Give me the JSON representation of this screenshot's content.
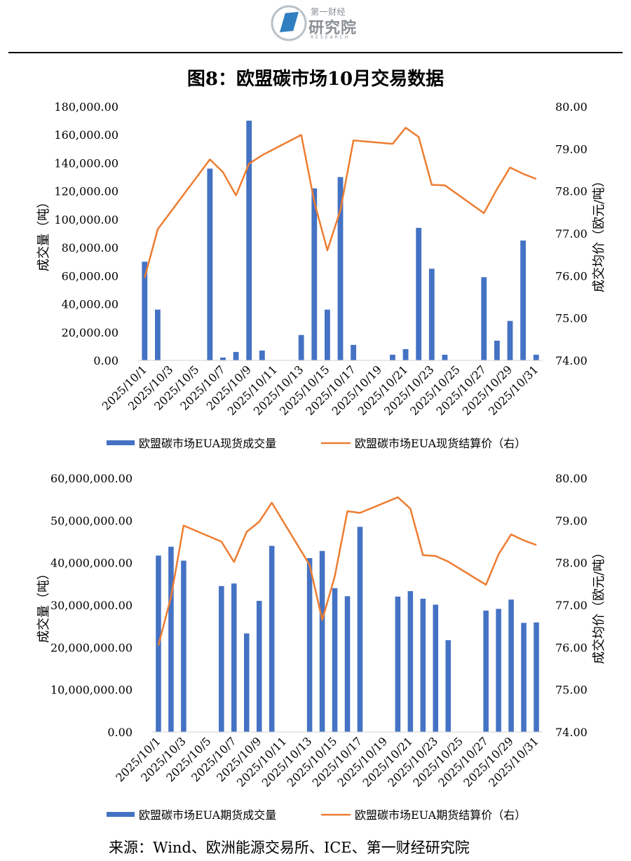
{
  "header": {
    "logo_small": "第一财经",
    "logo_big": "研究院",
    "logo_tiny": "RESEARCH"
  },
  "figure_title": "图8：欧盟碳市场10月交易数据",
  "source": "来源：Wind、欧洲能源交易所、ICE、第一财经研究院",
  "colors": {
    "bar": "#4472C4",
    "line": "#ED7D31"
  },
  "chart_data": [
    {
      "type": "bar+line",
      "ylabel": "成交量（吨）",
      "y2label": "成交均价（欧元/吨）",
      "ylim": [
        0,
        180000
      ],
      "y2lim": [
        74,
        80
      ],
      "yticks": [
        "0.00",
        "20,000.00",
        "40,000.00",
        "60,000.00",
        "80,000.00",
        "100,000.00",
        "120,000.00",
        "140,000.00",
        "160,000.00",
        "180,000.00"
      ],
      "y2ticks": [
        "74.00",
        "75.00",
        "76.00",
        "77.00",
        "78.00",
        "79.00",
        "80.00"
      ],
      "xtick_labels": [
        "2025/10/1",
        "2025/10/3",
        "2025/10/5",
        "2025/10/7",
        "2025/10/9",
        "2025/10/11",
        "2025/10/13",
        "2025/10/15",
        "2025/10/17",
        "2025/10/19",
        "2025/10/21",
        "2025/10/23",
        "2025/10/25",
        "2025/10/27",
        "2025/10/29",
        "2025/10/31"
      ],
      "days": [
        1,
        2,
        6,
        7,
        8,
        9,
        10,
        13,
        14,
        15,
        16,
        17,
        20,
        21,
        22,
        23,
        24,
        27,
        28,
        29,
        30,
        31
      ],
      "series": [
        {
          "name": "欧盟碳市场EUA现货成交量",
          "type": "bar",
          "values": [
            70000,
            36000,
            136000,
            2000,
            6000,
            170000,
            7000,
            18000,
            122000,
            36000,
            130000,
            11000,
            4000,
            8000,
            94000,
            65000,
            4000,
            59000,
            14000,
            28000,
            85000,
            4000
          ]
        },
        {
          "name": "欧盟碳市场EUA现货结算价（右）",
          "type": "line",
          "axis": "right",
          "values": [
            75.95,
            77.1,
            78.75,
            78.45,
            77.9,
            78.65,
            78.85,
            79.33,
            77.75,
            76.6,
            77.55,
            79.2,
            79.12,
            79.5,
            79.28,
            78.15,
            78.14,
            77.48,
            78.05,
            78.56,
            78.41,
            78.29
          ]
        }
      ]
    },
    {
      "type": "bar+line",
      "ylabel": "成交量（吨）",
      "y2label": "成交均价（欧元/吨）",
      "ylim": [
        0,
        60000000
      ],
      "y2lim": [
        74,
        80
      ],
      "yticks": [
        "0.00",
        "10,000,000.00",
        "20,000,000.00",
        "30,000,000.00",
        "40,000,000.00",
        "50,000,000.00",
        "60,000,000.00"
      ],
      "y2ticks": [
        "74.00",
        "75.00",
        "76.00",
        "77.00",
        "78.00",
        "79.00",
        "80.00"
      ],
      "xtick_labels": [
        "2025/10/1",
        "2025/10/3",
        "2025/10/5",
        "2025/10/7",
        "2025/10/9",
        "2025/10/11",
        "2025/10/13",
        "2025/10/15",
        "2025/10/17",
        "2025/10/19",
        "2025/10/21",
        "2025/10/23",
        "2025/10/25",
        "2025/10/27",
        "2025/10/29",
        "2025/10/31"
      ],
      "days": [
        1,
        2,
        3,
        6,
        7,
        8,
        9,
        10,
        13,
        14,
        15,
        16,
        17,
        20,
        21,
        22,
        23,
        24,
        27,
        28,
        29,
        30,
        31
      ],
      "series": [
        {
          "name": "欧盟碳市场EUA期货成交量",
          "type": "bar",
          "values": [
            41700000,
            43800000,
            40500000,
            34500000,
            35100000,
            23300000,
            31000000,
            44000000,
            41100000,
            42800000,
            34000000,
            32100000,
            48500000,
            32000000,
            33300000,
            31500000,
            30100000,
            21700000,
            28700000,
            29100000,
            31300000,
            25800000,
            25900000
          ]
        },
        {
          "name": "欧盟碳市场EUA期货结算价（右）",
          "type": "line",
          "axis": "right",
          "values": [
            76.05,
            77.2,
            78.88,
            78.5,
            78.02,
            78.73,
            78.97,
            79.42,
            77.95,
            76.65,
            77.68,
            79.22,
            79.18,
            79.55,
            79.28,
            78.18,
            78.16,
            78.03,
            77.48,
            78.2,
            78.67,
            78.53,
            78.42
          ]
        }
      ]
    }
  ]
}
